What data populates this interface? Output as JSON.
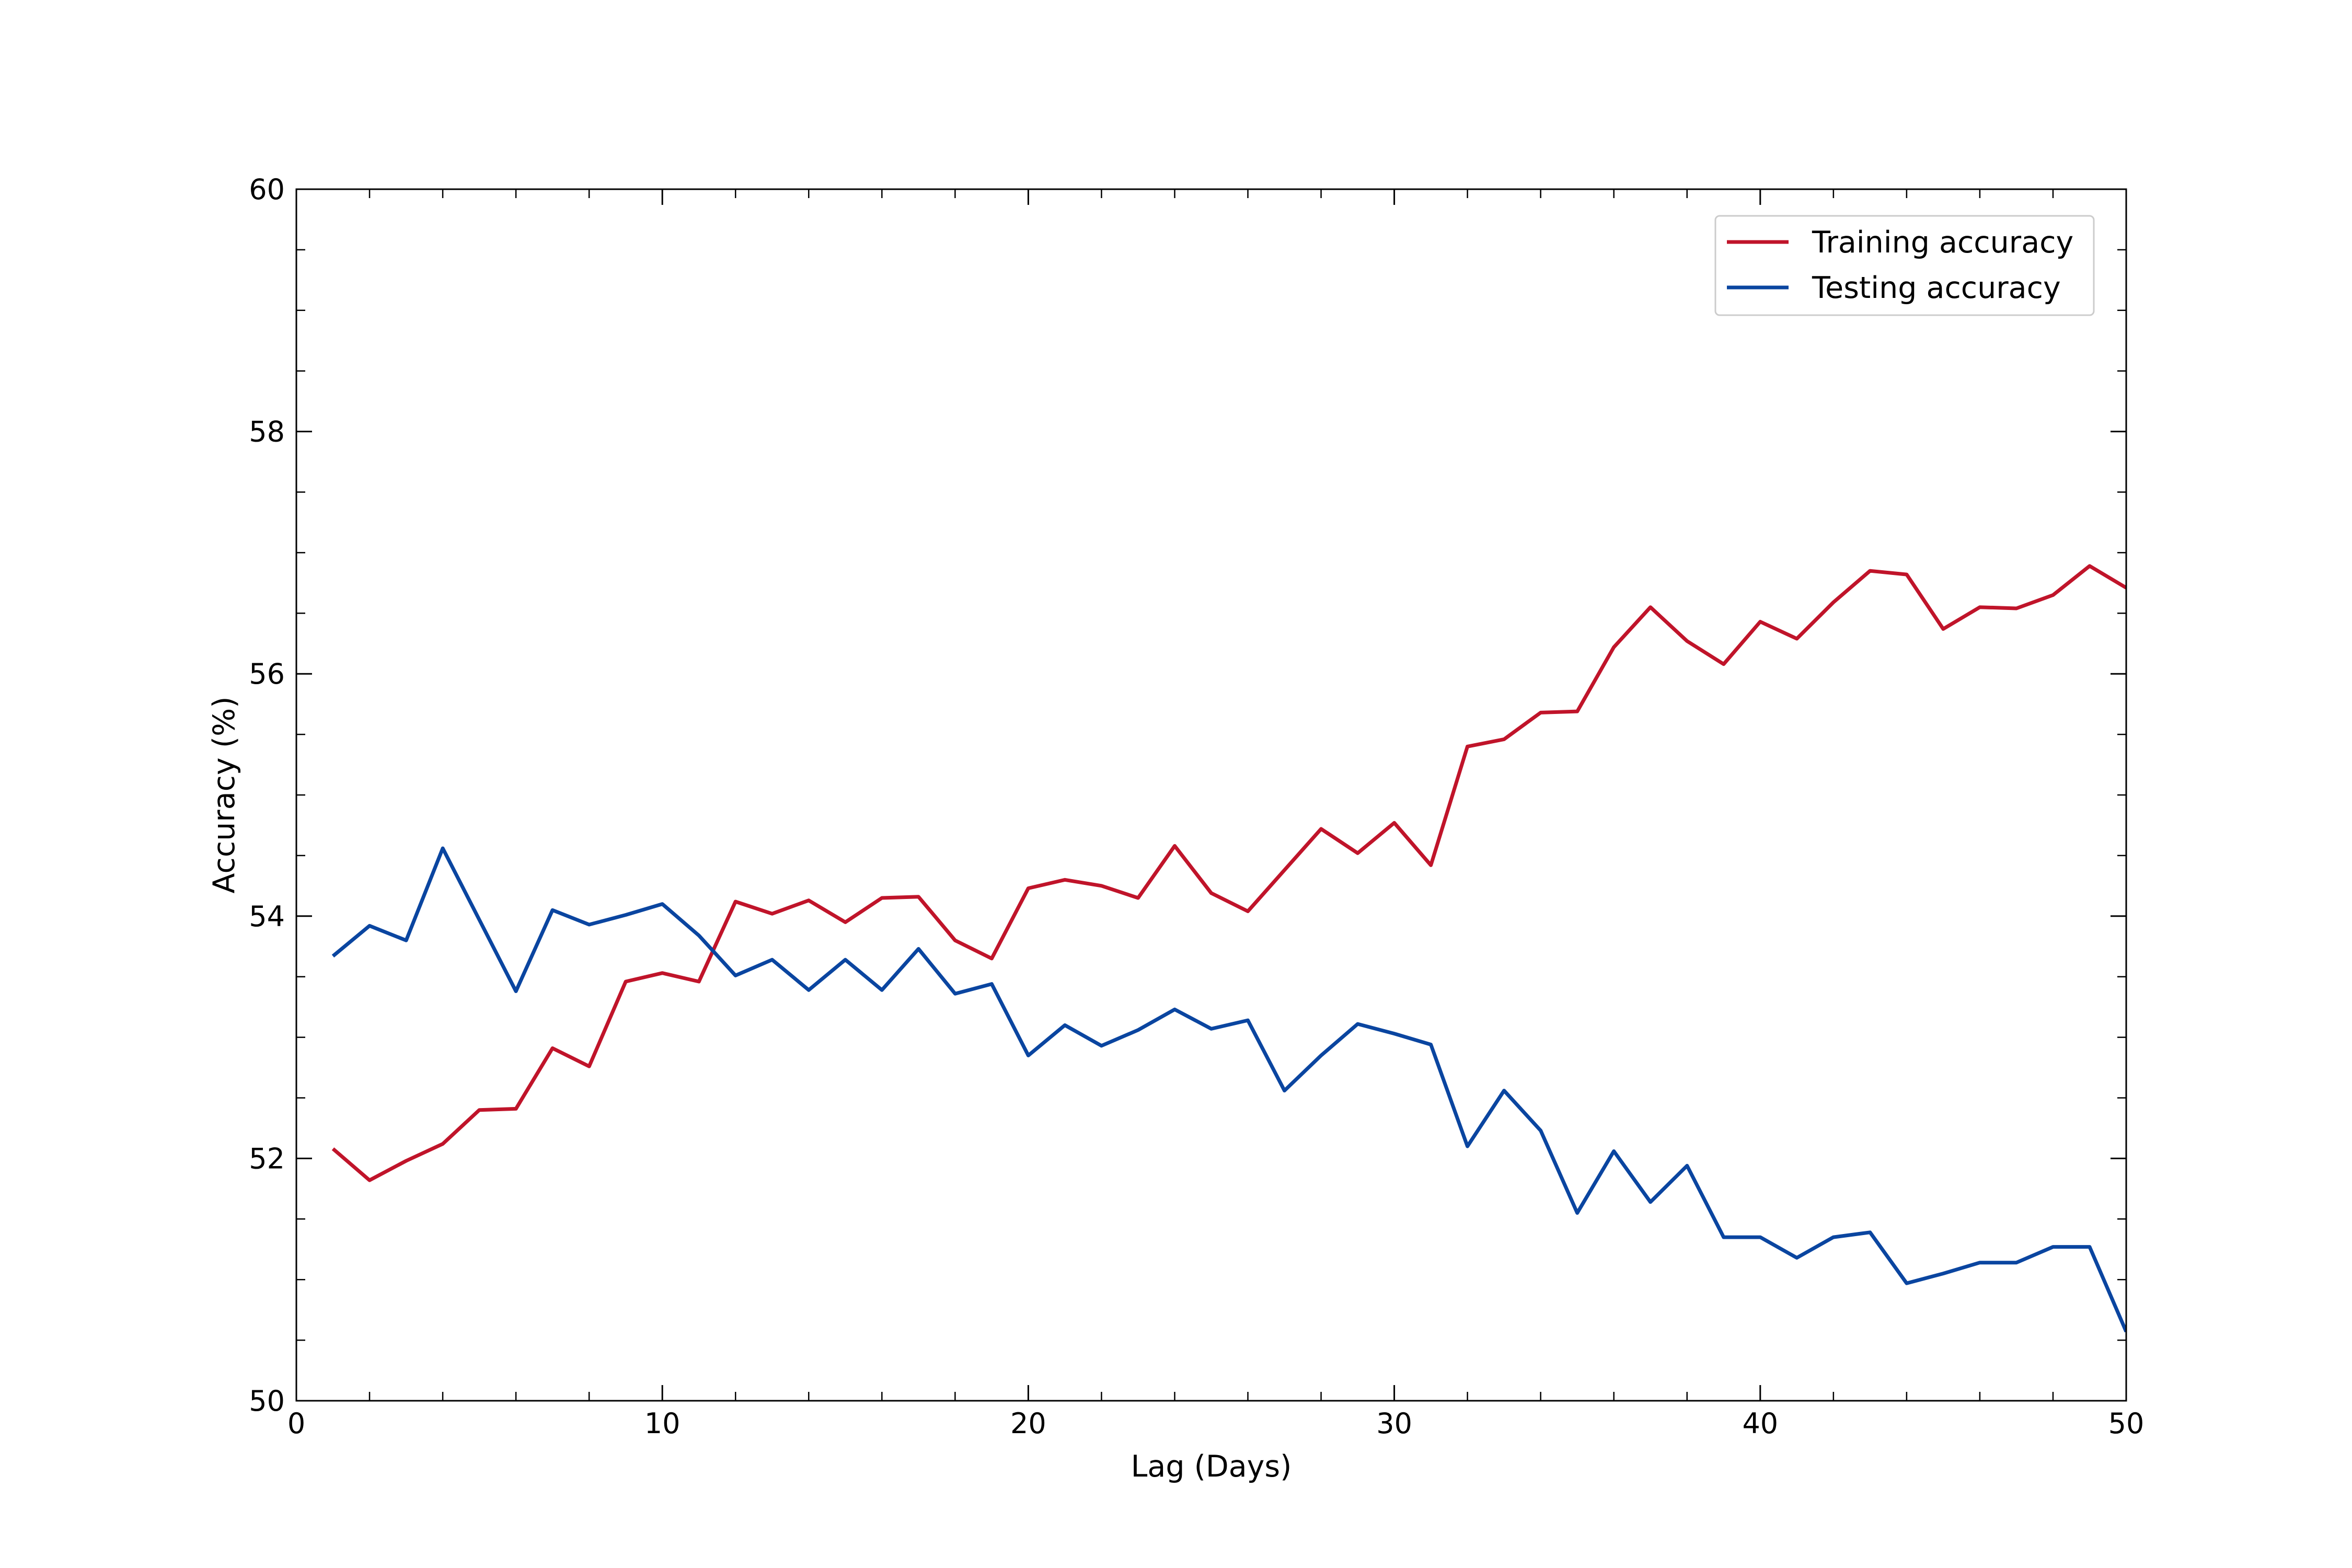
{
  "chart_data": {
    "type": "line",
    "xlabel": "Lag (Days)",
    "ylabel": "Accuracy (%)",
    "xlim": [
      0,
      50
    ],
    "ylim": [
      50,
      60
    ],
    "x_ticks": [
      0,
      10,
      20,
      30,
      40,
      50
    ],
    "y_ticks": [
      50,
      52,
      54,
      56,
      58,
      60
    ],
    "grid": false,
    "legend_position": "top-right",
    "x": [
      1,
      2,
      3,
      4,
      5,
      6,
      7,
      8,
      9,
      10,
      11,
      12,
      13,
      14,
      15,
      16,
      17,
      18,
      19,
      20,
      21,
      22,
      23,
      24,
      25,
      26,
      27,
      28,
      29,
      30,
      31,
      32,
      33,
      34,
      35,
      36,
      37,
      38,
      39,
      40,
      41,
      42,
      43,
      44,
      45,
      46,
      47,
      48,
      49,
      50
    ],
    "series": [
      {
        "name": "Training accuracy",
        "color": "#c0142a",
        "values": [
          52.08,
          51.82,
          51.98,
          52.12,
          52.4,
          52.41,
          52.91,
          52.76,
          53.46,
          53.53,
          53.46,
          54.12,
          54.02,
          54.13,
          53.95,
          54.15,
          54.16,
          53.8,
          53.65,
          54.23,
          54.3,
          54.25,
          54.15,
          54.58,
          54.19,
          54.04,
          54.38,
          54.72,
          54.52,
          54.77,
          54.42,
          55.4,
          55.46,
          55.68,
          55.69,
          56.22,
          56.55,
          56.27,
          56.08,
          56.43,
          56.29,
          56.59,
          56.85,
          56.82,
          56.37,
          56.55,
          56.54,
          56.65,
          56.89,
          56.71
        ]
      },
      {
        "name": "Testing accuracy",
        "color": "#0a45a0",
        "values": [
          53.67,
          53.92,
          53.8,
          54.56,
          53.97,
          53.38,
          54.05,
          53.93,
          54.01,
          54.1,
          53.84,
          53.51,
          53.64,
          53.39,
          53.64,
          53.39,
          53.73,
          53.36,
          53.44,
          52.85,
          53.1,
          52.93,
          53.06,
          53.23,
          53.07,
          53.14,
          52.56,
          52.85,
          53.11,
          53.03,
          52.94,
          52.1,
          52.56,
          52.23,
          51.55,
          52.06,
          51.64,
          51.94,
          51.35,
          51.35,
          51.18,
          51.35,
          51.39,
          50.97,
          51.05,
          51.14,
          51.14,
          51.27,
          51.27,
          50.57
        ]
      }
    ]
  }
}
